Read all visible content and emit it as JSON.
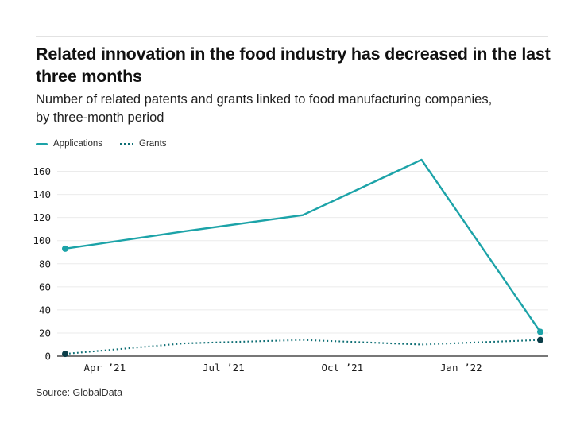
{
  "header": {
    "title": "Related innovation in the food industry has decreased in the last three months",
    "subtitle": "Number of related patents and grants linked to food manufacturing companies, by three-month period"
  },
  "legend": [
    {
      "label": "Applications",
      "style": "solid",
      "color": "#1CA3A8"
    },
    {
      "label": "Grants",
      "style": "dotted",
      "color": "#0D6E74"
    }
  ],
  "chart_data": {
    "type": "line",
    "title": "Related innovation in the food industry has decreased in the last three months",
    "subtitle": "Number of related patents and grants linked to food manufacturing companies, by three-month period",
    "x_months": [
      0,
      3,
      6,
      9,
      12
    ],
    "x_ticks": [
      {
        "month": 1,
        "label": "Apr ’21"
      },
      {
        "month": 4,
        "label": "Jul ’21"
      },
      {
        "month": 7,
        "label": "Oct ’21"
      },
      {
        "month": 10,
        "label": "Jan ’22"
      }
    ],
    "y_ticks": [
      0,
      20,
      40,
      60,
      80,
      100,
      120,
      140,
      160
    ],
    "ylim": [
      0,
      175
    ],
    "grid": true,
    "legend_position": "top-left",
    "series": [
      {
        "name": "Applications",
        "values": [
          93,
          108,
          122,
          170,
          21
        ],
        "style": "solid",
        "color": "#1CA3A8",
        "marker_color": "#1CA3A8",
        "markers": "endpoints"
      },
      {
        "name": "Grants",
        "values": [
          2,
          11,
          14,
          10,
          14
        ],
        "style": "dotted",
        "color": "#0D6E74",
        "marker_color": "#0B3D48",
        "markers": "endpoints"
      }
    ],
    "colors": {
      "axis": "#4a4a4a",
      "gridline": "#ebebeb",
      "tick_text": "#1c1c1c"
    }
  },
  "footer": {
    "source": "Source: GlobalData"
  }
}
